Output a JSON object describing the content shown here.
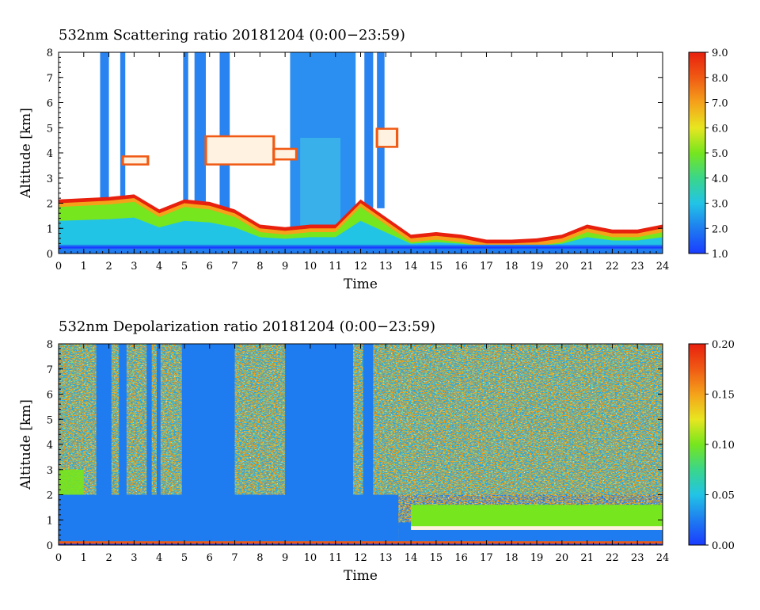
{
  "chart_data": [
    {
      "type": "heatmap",
      "title": "532nm Scattering ratio  20181204 (0:00−23:59)",
      "xlabel": "Time",
      "ylabel": "Altitude [km]",
      "xlim": [
        0,
        24
      ],
      "ylim": [
        0,
        8
      ],
      "x_ticks": [
        "0",
        "1",
        "2",
        "3",
        "4",
        "5",
        "6",
        "7",
        "8",
        "9",
        "10",
        "11",
        "12",
        "13",
        "14",
        "15",
        "16",
        "17",
        "18",
        "19",
        "20",
        "21",
        "22",
        "23",
        "24"
      ],
      "y_ticks": [
        "0",
        "1",
        "2",
        "3",
        "4",
        "5",
        "6",
        "7",
        "8"
      ],
      "colorbar": {
        "min": 1.0,
        "max": 9.0,
        "ticks": [
          "1.0",
          "2.0",
          "3.0",
          "4.0",
          "5.0",
          "6.0",
          "7.0",
          "8.0",
          "9.0"
        ]
      },
      "features": {
        "boundary_layer_top_km": [
          [
            0,
            2.0
          ],
          [
            2,
            2.1
          ],
          [
            3,
            2.2
          ],
          [
            4,
            1.6
          ],
          [
            5,
            2.0
          ],
          [
            6,
            1.9
          ],
          [
            7,
            1.6
          ],
          [
            8,
            1.0
          ],
          [
            9,
            0.9
          ],
          [
            10,
            1.0
          ],
          [
            11,
            1.0
          ],
          [
            12,
            2.0
          ],
          [
            13,
            1.3
          ],
          [
            14,
            0.6
          ],
          [
            15,
            0.7
          ],
          [
            16,
            0.6
          ],
          [
            17,
            0.4
          ],
          [
            18,
            0.4
          ],
          [
            19,
            0.45
          ],
          [
            20,
            0.6
          ],
          [
            21,
            1.0
          ],
          [
            22,
            0.8
          ],
          [
            23,
            0.8
          ],
          [
            24,
            1.0
          ]
        ],
        "cloud_layers": [
          {
            "start": 2.5,
            "end": 3.6,
            "base_km": 3.5,
            "top_km": 3.9
          },
          {
            "start": 5.8,
            "end": 8.6,
            "base_km": 3.5,
            "top_km": 4.7
          },
          {
            "start": 8.5,
            "end": 9.5,
            "base_km": 3.7,
            "top_km": 4.2
          },
          {
            "start": 12.6,
            "end": 13.5,
            "base_km": 4.2,
            "top_km": 5.0
          }
        ],
        "high_signal_columns": [
          {
            "start": 1.65,
            "end": 2.0
          },
          {
            "start": 2.45,
            "end": 2.65
          },
          {
            "start": 4.95,
            "end": 5.15
          },
          {
            "start": 5.4,
            "end": 5.85
          },
          {
            "start": 6.4,
            "end": 6.8
          },
          {
            "start": 9.2,
            "end": 11.8
          },
          {
            "start": 12.15,
            "end": 12.5
          },
          {
            "start": 12.65,
            "end": 12.95
          }
        ]
      }
    },
    {
      "type": "heatmap",
      "title": "532nm Depolarization ratio  20181204 (0:00−23:59)",
      "xlabel": "Time",
      "ylabel": "Altitude [km]",
      "xlim": [
        0,
        24
      ],
      "ylim": [
        0,
        8
      ],
      "x_ticks": [
        "0",
        "1",
        "2",
        "3",
        "4",
        "5",
        "6",
        "7",
        "8",
        "9",
        "10",
        "11",
        "12",
        "13",
        "14",
        "15",
        "16",
        "17",
        "18",
        "19",
        "20",
        "21",
        "22",
        "23",
        "24"
      ],
      "y_ticks": [
        "0",
        "1",
        "2",
        "3",
        "4",
        "5",
        "6",
        "7",
        "8"
      ],
      "colorbar": {
        "min": 0.0,
        "max": 0.2,
        "ticks": [
          "0.00",
          "0.05",
          "0.10",
          "0.15",
          "0.20"
        ]
      },
      "features": {
        "low_depol_columns": [
          {
            "start": 1.5,
            "end": 2.1
          },
          {
            "start": 2.4,
            "end": 2.7
          },
          {
            "start": 3.5,
            "end": 3.7
          },
          {
            "start": 3.9,
            "end": 4.05
          },
          {
            "start": 4.9,
            "end": 7.0
          },
          {
            "start": 9.0,
            "end": 11.7
          },
          {
            "start": 12.1,
            "end": 12.5
          }
        ],
        "noisy_high_depol_start_km": [
          [
            0,
            3.2
          ],
          [
            9,
            8
          ],
          [
            13,
            2.0
          ],
          [
            14,
            2.0
          ],
          [
            24,
            2.0
          ]
        ],
        "aerosol_layer": {
          "start": 14.0,
          "end": 24.0,
          "base_km": 0.6,
          "top_km": 1.6
        }
      }
    }
  ]
}
